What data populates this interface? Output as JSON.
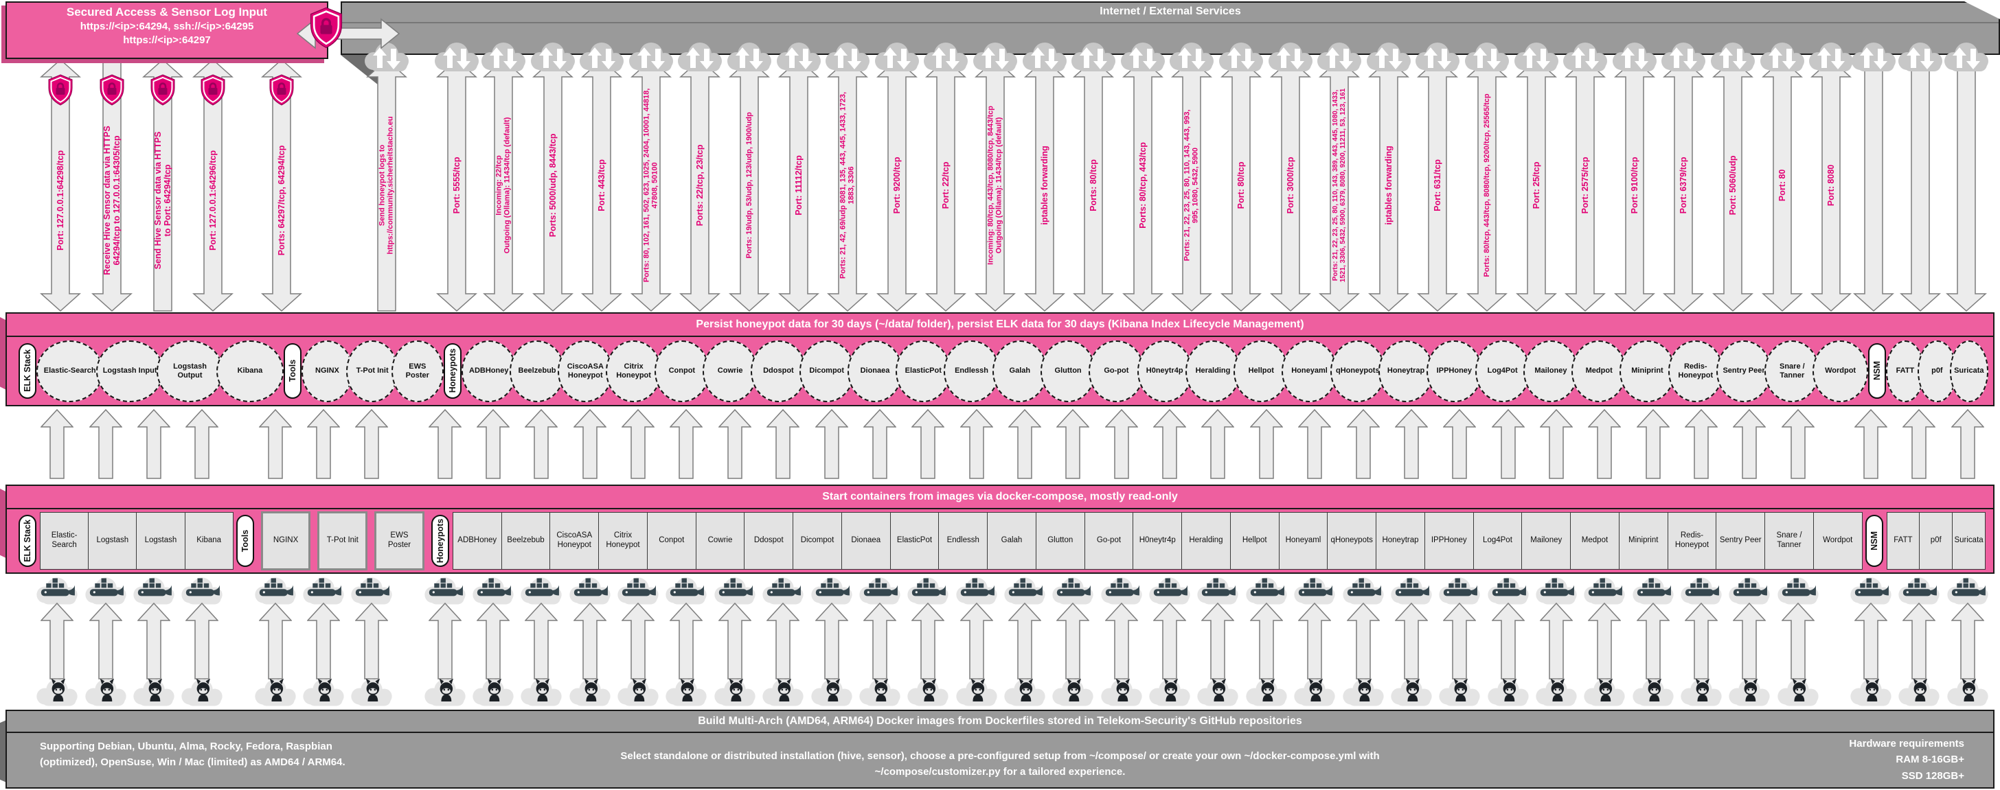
{
  "secured_access": {
    "title": "Secured Access & Sensor Log Input",
    "line1": "https://<ip>:64294, ssh://<ip>:64295",
    "line2": "https://<ip>:64297"
  },
  "internet_band": {
    "title": "Internet / External Services"
  },
  "persist_band": {
    "title": "Persist honeypot data for 30 days (~/data/ folder), persist ELK data for 30 days (Kibana Index Lifecycle Management)"
  },
  "compose_band": {
    "title": "Start containers from images via docker-compose, mostly read-only"
  },
  "build_band": {
    "title": "Build Multi-Arch (AMD64, ARM64) Docker images from Dockerfiles stored in Telekom-Security's GitHub repositories"
  },
  "footer": {
    "left": "Supporting Debian, Ubuntu, Alma, Rocky, Fedora, Raspbian (optimized), OpenSuse, Win / Mac (limited) as AMD64 / ARM64.",
    "center": "Select standalone or distributed installation (hive, sensor), choose a pre-configured setup from ~/compose/ or create your own ~/docker-compose.yml with ~/compose/customizer.py for a tailored experience.",
    "right_title": "Hardware requirements",
    "right_line1": "RAM 8-16GB+",
    "right_line2": "SSD 128GB+"
  },
  "colors": {
    "magenta": "#e20074",
    "pink": "#ee5f9f",
    "gray": "#9a9a9a"
  },
  "access_arrows": [
    {
      "label": "Port: 127.0.0.1:64298/tcp",
      "type": "both",
      "shield": true
    },
    {
      "label": "Receive Hive Sensor data via HTTPS\n64294/tcp to 127.0.0.1:64305/tcp",
      "type": "down",
      "shield": true
    },
    {
      "label": "Send Hive Sensor data via HTTPS\nto Port: 64294/tcp",
      "type": "up",
      "shield": true
    },
    {
      "label": "Port: 127.0.0.1:64296/tcp",
      "type": "both",
      "shield": true
    },
    {
      "label": "Ports: 64297/tcp, 64294/tcp",
      "type": "both",
      "shield": true
    }
  ],
  "service_arrows": [
    {
      "label": "Send honeypot logs to\nhttps://community.sicherheitstacho.eu",
      "type": "up"
    },
    {
      "label": "Port: 5555/tcp",
      "type": "both"
    },
    {
      "label": "Incoming: 22/tcp\nOutgoing (Ollama): 11434/tcp (default)",
      "type": "both"
    },
    {
      "label": "Ports: 5000/udp, 8443/tcp",
      "type": "both"
    },
    {
      "label": "Port: 443/tcp",
      "type": "both"
    },
    {
      "label": "Ports: 80, 102, 161, 502, 623, 1025, 2404, 10001, 44818,\n47808, 50100",
      "type": "both"
    },
    {
      "label": "Ports: 22/tcp, 23/tcp",
      "type": "both"
    },
    {
      "label": "Ports: 19/udp, 53/udp, 123/udp, 1900/udp",
      "type": "both"
    },
    {
      "label": "Port: 11112/tcp",
      "type": "both"
    },
    {
      "label": "Ports: 21, 42, 69/udp 8081, 135, 443, 445, 1433, 1723,\n1883, 3306",
      "type": "both"
    },
    {
      "label": "Port: 9200/tcp",
      "type": "both"
    },
    {
      "label": "Port: 22/tcp",
      "type": "both"
    },
    {
      "label": "Incoming: 80/tcp, 443/tcp, 8080/tcp, 8443/tcp\nOutgoing (Ollama): 11434/tcp (default)",
      "type": "both"
    },
    {
      "label": "iptables forwarding",
      "type": "both"
    },
    {
      "label": "Ports: 80/tcp",
      "type": "both"
    },
    {
      "label": "Ports: 80/tcp, 443/tcp",
      "type": "both"
    },
    {
      "label": "Ports: 21, 22, 23, 25, 80, 110, 143, 443, 993,\n995, 1080, 5432, 5900",
      "type": "both"
    },
    {
      "label": "Port: 80/tcp",
      "type": "both"
    },
    {
      "label": "Port: 3000/tcp",
      "type": "both"
    },
    {
      "label": "Ports: 21, 22, 23, 25, 80, 110, 143, 389, 443, 445, 1080, 1433,\n1521, 3306, 5432, 5900, 6379, 8080, 9200, 11211, 53, 123, 161",
      "type": "both"
    },
    {
      "label": "iptables forwarding",
      "type": "both"
    },
    {
      "label": "Port: 631/tcp",
      "type": "both"
    },
    {
      "label": "Ports: 80/tcp, 443/tcp, 8080/tcp, 9200/tcp, 25565/tcp",
      "type": "both"
    },
    {
      "label": "Port: 25/tcp",
      "type": "both"
    },
    {
      "label": "Port: 2575/tcp",
      "type": "both"
    },
    {
      "label": "Port: 9100/tcp",
      "type": "both"
    },
    {
      "label": "Port: 6379/tcp",
      "type": "both"
    },
    {
      "label": "Port: 5060/udp",
      "type": "both"
    },
    {
      "label": "Port: 80",
      "type": "both"
    },
    {
      "label": "Port: 8080",
      "type": "both"
    },
    {
      "label": "",
      "type": "down"
    },
    {
      "label": "",
      "type": "down"
    },
    {
      "label": "",
      "type": "down"
    }
  ],
  "groups": [
    {
      "label": "ELK Stack",
      "tools": false,
      "circles": [
        "Elastic-Search",
        "Logstash Input",
        "Logstash Output",
        "Kibana"
      ],
      "boxes": [
        "Elastic-Search",
        "Logstash",
        "Logstash",
        "Kibana"
      ]
    },
    {
      "label": "Tools",
      "tools": true,
      "circles": [
        "NGINX",
        "T-Pot Init",
        "EWS Poster"
      ],
      "boxes": [
        "NGINX",
        "T-Pot Init",
        "EWS Poster"
      ]
    },
    {
      "label": "Honeypots",
      "tools": false,
      "circles": [
        "ADBHoney",
        "Beelzebub",
        "CiscoASA Honeypot",
        "Citrix Honeypot",
        "Conpot",
        "Cowrie",
        "Ddospot",
        "Dicompot",
        "Dionaea",
        "ElasticPot",
        "Endlessh",
        "Galah",
        "Glutton",
        "Go-pot",
        "H0neytr4p",
        "Heralding",
        "Hellpot",
        "Honeyaml",
        "qHoneypots",
        "Honeytrap",
        "IPPHoney",
        "Log4Pot",
        "Mailoney",
        "Medpot",
        "Miniprint",
        "Redis-Honeypot",
        "Sentry Peer",
        "Snare / Tanner",
        "Wordpot"
      ],
      "boxes": [
        "ADBHoney",
        "Beelzebub",
        "CiscoASA Honeypot",
        "Citrix Honeypot",
        "Conpot",
        "Cowrie",
        "Ddospot",
        "Dicompot",
        "Dionaea",
        "ElasticPot",
        "Endlessh",
        "Galah",
        "Glutton",
        "Go-pot",
        "H0neytr4p",
        "Heralding",
        "Hellpot",
        "Honeyaml",
        "qHoneypots",
        "Honeytrap",
        "IPPHoney",
        "Log4Pot",
        "Mailoney",
        "Medpot",
        "Miniprint",
        "Redis-Honeypot",
        "Sentry Peer",
        "Snare / Tanner",
        "Wordpot"
      ]
    },
    {
      "label": "NSM",
      "tools": false,
      "circles": [
        "FATT",
        "p0f",
        "Suricata"
      ],
      "boxes": [
        "FATT",
        "p0f",
        "Suricata"
      ]
    }
  ]
}
